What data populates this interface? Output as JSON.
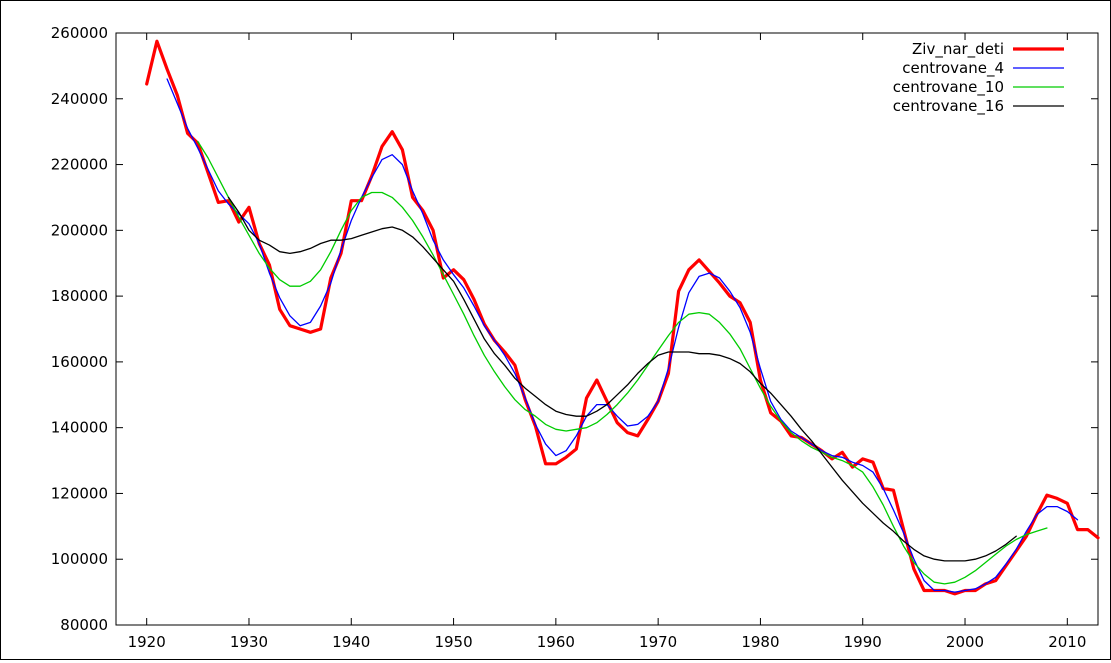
{
  "chart_data": {
    "type": "line",
    "title": "",
    "xlabel": "",
    "ylabel": "",
    "xlim": [
      1917,
      2013
    ],
    "ylim": [
      80000,
      260000
    ],
    "x_ticks": [
      1920,
      1930,
      1940,
      1950,
      1960,
      1970,
      1980,
      1990,
      2000,
      2010
    ],
    "y_ticks": [
      80000,
      100000,
      120000,
      140000,
      160000,
      180000,
      200000,
      220000,
      240000,
      260000
    ],
    "grid": false,
    "legend_position": "top-right",
    "series": [
      {
        "name": "Ziv_nar_deti",
        "color": "#ff0000",
        "x": [
          1920,
          1921,
          1922,
          1923,
          1924,
          1925,
          1926,
          1927,
          1928,
          1929,
          1930,
          1931,
          1932,
          1933,
          1934,
          1935,
          1936,
          1937,
          1938,
          1939,
          1940,
          1941,
          1942,
          1943,
          1944,
          1945,
          1946,
          1947,
          1948,
          1949,
          1950,
          1951,
          1952,
          1953,
          1954,
          1955,
          1956,
          1957,
          1958,
          1959,
          1960,
          1961,
          1962,
          1963,
          1964,
          1965,
          1966,
          1967,
          1968,
          1969,
          1970,
          1971,
          1972,
          1973,
          1974,
          1975,
          1976,
          1977,
          1978,
          1979,
          1980,
          1981,
          1982,
          1983,
          1984,
          1985,
          1986,
          1987,
          1988,
          1989,
          1990,
          1991,
          1992,
          1993,
          1994,
          1995,
          1996,
          1997,
          1998,
          1999,
          2000,
          2001,
          2002,
          2003,
          2004,
          2005,
          2006,
          2007,
          2008,
          2009,
          2010,
          2011,
          2012,
          2013
        ],
        "values": [
          244500,
          257500,
          249000,
          241000,
          229500,
          226500,
          217500,
          208500,
          209000,
          202500,
          207000,
          196000,
          189500,
          176000,
          171000,
          170000,
          169000,
          170000,
          185500,
          193000,
          209000,
          209000,
          216500,
          225500,
          230000,
          224500,
          210000,
          206000,
          200000,
          185500,
          188000,
          185000,
          179000,
          171500,
          166500,
          163000,
          159000,
          148500,
          140500,
          129000,
          129000,
          131000,
          133500,
          149000,
          154500,
          148000,
          141500,
          138500,
          137500,
          142500,
          148000,
          156500,
          181500,
          188000,
          191000,
          187500,
          184000,
          180000,
          178000,
          172000,
          154500,
          144500,
          142000,
          137500,
          137000,
          135000,
          133000,
          130500,
          132500,
          128000,
          130500,
          129500,
          121500,
          121000,
          109000,
          97000,
          90500,
          90500,
          90500,
          89500,
          90500,
          90500,
          92500,
          93500,
          98000,
          102500,
          107000,
          113500,
          119500,
          118500,
          117000,
          109000,
          109000,
          106500
        ]
      },
      {
        "name": "centrovane_4",
        "color": "#0000ff",
        "x": [
          1922,
          1923,
          1924,
          1925,
          1926,
          1927,
          1928,
          1929,
          1930,
          1931,
          1932,
          1933,
          1934,
          1935,
          1936,
          1937,
          1938,
          1939,
          1940,
          1941,
          1942,
          1943,
          1944,
          1945,
          1946,
          1947,
          1948,
          1949,
          1950,
          1951,
          1952,
          1953,
          1954,
          1955,
          1956,
          1957,
          1958,
          1959,
          1960,
          1961,
          1962,
          1963,
          1964,
          1965,
          1966,
          1967,
          1968,
          1969,
          1970,
          1971,
          1972,
          1973,
          1974,
          1975,
          1976,
          1977,
          1978,
          1979,
          1980,
          1981,
          1982,
          1983,
          1984,
          1985,
          1986,
          1987,
          1988,
          1989,
          1990,
          1991,
          1992,
          1993,
          1994,
          1995,
          1996,
          1997,
          1998,
          1999,
          2000,
          2001,
          2002,
          2003,
          2004,
          2005,
          2006,
          2007,
          2008,
          2009,
          2010,
          2011
        ],
        "values": [
          246000,
          238500,
          231000,
          225000,
          218500,
          212000,
          208000,
          205000,
          202000,
          196000,
          187000,
          179500,
          174000,
          171000,
          172000,
          177000,
          184000,
          194000,
          203000,
          210000,
          216000,
          221500,
          223000,
          220000,
          212000,
          205000,
          197000,
          191000,
          186500,
          182500,
          177000,
          171000,
          166500,
          162000,
          156500,
          149000,
          141000,
          135000,
          131500,
          133000,
          137500,
          143500,
          147000,
          147000,
          143500,
          140500,
          141000,
          143500,
          148000,
          158000,
          170500,
          181000,
          186000,
          187000,
          185500,
          181500,
          176500,
          169000,
          158000,
          148000,
          142500,
          139000,
          137000,
          135000,
          133000,
          131500,
          131000,
          129500,
          128500,
          126500,
          121500,
          115000,
          108000,
          100000,
          93500,
          90500,
          90500,
          90000,
          90500,
          91000,
          92500,
          94500,
          98500,
          103000,
          108500,
          113500,
          116000,
          116000,
          114500,
          112000
        ]
      },
      {
        "name": "centrovane_10",
        "color": "#00cc00",
        "x": [
          1925,
          1926,
          1927,
          1928,
          1929,
          1930,
          1931,
          1932,
          1933,
          1934,
          1935,
          1936,
          1937,
          1938,
          1939,
          1940,
          1941,
          1942,
          1943,
          1944,
          1945,
          1946,
          1947,
          1948,
          1949,
          1950,
          1951,
          1952,
          1953,
          1954,
          1955,
          1956,
          1957,
          1958,
          1959,
          1960,
          1961,
          1962,
          1963,
          1964,
          1965,
          1966,
          1967,
          1968,
          1969,
          1970,
          1971,
          1972,
          1973,
          1974,
          1975,
          1976,
          1977,
          1978,
          1979,
          1980,
          1981,
          1982,
          1983,
          1984,
          1985,
          1986,
          1987,
          1988,
          1989,
          1990,
          1991,
          1992,
          1993,
          1994,
          1995,
          1996,
          1997,
          1998,
          1999,
          2000,
          2001,
          2002,
          2003,
          2004,
          2005,
          2006,
          2007,
          2008
        ],
        "values": [
          227000,
          222000,
          216000,
          210000,
          204000,
          198500,
          193000,
          188500,
          185000,
          183000,
          183000,
          184500,
          188000,
          193500,
          200000,
          206000,
          210000,
          211500,
          211500,
          210000,
          207000,
          203000,
          198000,
          192500,
          186500,
          180500,
          174500,
          168000,
          162000,
          157000,
          152500,
          148500,
          145500,
          143500,
          141000,
          139500,
          139000,
          139500,
          140000,
          141500,
          144000,
          147000,
          150500,
          154500,
          159000,
          163500,
          168000,
          172000,
          174500,
          175000,
          174500,
          172000,
          168500,
          164000,
          158000,
          152000,
          146500,
          142000,
          138500,
          136000,
          134000,
          132500,
          131000,
          130000,
          128500,
          126500,
          122000,
          116500,
          110000,
          104000,
          99000,
          95500,
          93000,
          92500,
          93000,
          94500,
          96500,
          99000,
          101500,
          104000,
          106000,
          107500,
          108500,
          109500
        ]
      },
      {
        "name": "centrovane_16",
        "color": "#000000",
        "x": [
          1928,
          1929,
          1930,
          1931,
          1932,
          1933,
          1934,
          1935,
          1936,
          1937,
          1938,
          1939,
          1940,
          1941,
          1942,
          1943,
          1944,
          1945,
          1946,
          1947,
          1948,
          1949,
          1950,
          1951,
          1952,
          1953,
          1954,
          1955,
          1956,
          1957,
          1958,
          1959,
          1960,
          1961,
          1962,
          1963,
          1964,
          1965,
          1966,
          1967,
          1968,
          1969,
          1970,
          1971,
          1972,
          1973,
          1974,
          1975,
          1976,
          1977,
          1978,
          1979,
          1980,
          1981,
          1982,
          1983,
          1984,
          1985,
          1986,
          1987,
          1988,
          1989,
          1990,
          1991,
          1992,
          1993,
          1994,
          1995,
          1996,
          1997,
          1998,
          1999,
          2000,
          2001,
          2002,
          2003,
          2004,
          2005
        ],
        "values": [
          210000,
          205500,
          200000,
          197000,
          195500,
          193500,
          193000,
          193500,
          194500,
          196000,
          197000,
          197000,
          197500,
          198500,
          199500,
          200500,
          201000,
          200000,
          198000,
          195000,
          191500,
          188000,
          184500,
          179000,
          173000,
          167000,
          162500,
          159000,
          155000,
          152000,
          149500,
          147000,
          145000,
          144000,
          143500,
          143500,
          145000,
          147000,
          150000,
          153000,
          156500,
          159500,
          162000,
          163000,
          163000,
          163000,
          162500,
          162500,
          162000,
          161000,
          159500,
          157000,
          153500,
          150500,
          147000,
          143500,
          139500,
          136000,
          132000,
          128000,
          124000,
          120500,
          117000,
          114000,
          111000,
          108500,
          105500,
          103000,
          101000,
          100000,
          99500,
          99500,
          99500,
          100000,
          101000,
          102500,
          104500,
          107000
        ]
      }
    ]
  }
}
